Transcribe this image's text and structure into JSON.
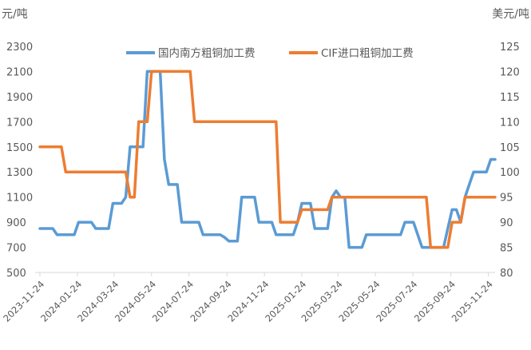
{
  "chart_data": {
    "type": "line",
    "left_axis_label": "元/吨",
    "right_axis_label": "美元/吨",
    "left_ylim": [
      500,
      2300
    ],
    "left_ticks": [
      500,
      700,
      900,
      1100,
      1300,
      1500,
      1700,
      1900,
      2100,
      2300
    ],
    "right_ylim": [
      80,
      125
    ],
    "right_ticks": [
      80,
      85,
      90,
      95,
      100,
      105,
      110,
      115,
      120,
      125
    ],
    "x_tick_labels": [
      "2023-11-24",
      "2024-01-24",
      "2024-03-24",
      "2024-05-24",
      "2024-07-24",
      "2024-09-24",
      "2024-11-24",
      "2025-01-24",
      "2025-03-24",
      "2025-05-24",
      "2025-07-24",
      "2025-09-24",
      "2025-11-24"
    ],
    "legend_position": "top",
    "grid": false,
    "series": [
      {
        "name": "国内南方粗铜加工费",
        "axis": "left",
        "color": "#5B9BD5",
        "points": [
          [
            "2023-11-24",
            850
          ],
          [
            "2023-12-01",
            850
          ],
          [
            "2023-12-08",
            850
          ],
          [
            "2023-12-15",
            850
          ],
          [
            "2023-12-22",
            800
          ],
          [
            "2023-12-29",
            800
          ],
          [
            "2024-01-05",
            800
          ],
          [
            "2024-01-12",
            800
          ],
          [
            "2024-01-19",
            800
          ],
          [
            "2024-01-26",
            900
          ],
          [
            "2024-02-02",
            900
          ],
          [
            "2024-02-09",
            900
          ],
          [
            "2024-02-16",
            900
          ],
          [
            "2024-02-23",
            850
          ],
          [
            "2024-03-01",
            850
          ],
          [
            "2024-03-08",
            850
          ],
          [
            "2024-03-15",
            850
          ],
          [
            "2024-03-22",
            1050
          ],
          [
            "2024-03-29",
            1050
          ],
          [
            "2024-04-05",
            1050
          ],
          [
            "2024-04-12",
            1100
          ],
          [
            "2024-04-19",
            1500
          ],
          [
            "2024-04-26",
            1500
          ],
          [
            "2024-05-03",
            1500
          ],
          [
            "2024-05-10",
            1500
          ],
          [
            "2024-05-17",
            2100
          ],
          [
            "2024-05-24",
            2100
          ],
          [
            "2024-05-31",
            2100
          ],
          [
            "2024-06-07",
            2100
          ],
          [
            "2024-06-14",
            1400
          ],
          [
            "2024-06-21",
            1200
          ],
          [
            "2024-06-28",
            1200
          ],
          [
            "2024-07-05",
            1200
          ],
          [
            "2024-07-12",
            900
          ],
          [
            "2024-07-19",
            900
          ],
          [
            "2024-07-26",
            900
          ],
          [
            "2024-08-02",
            900
          ],
          [
            "2024-08-09",
            900
          ],
          [
            "2024-08-16",
            800
          ],
          [
            "2024-08-23",
            800
          ],
          [
            "2024-08-30",
            800
          ],
          [
            "2024-09-06",
            800
          ],
          [
            "2024-09-13",
            800
          ],
          [
            "2024-09-20",
            780
          ],
          [
            "2024-09-27",
            750
          ],
          [
            "2024-10-04",
            750
          ],
          [
            "2024-10-11",
            750
          ],
          [
            "2024-10-18",
            1100
          ],
          [
            "2024-10-25",
            1100
          ],
          [
            "2024-11-01",
            1100
          ],
          [
            "2024-11-08",
            1100
          ],
          [
            "2024-11-15",
            900
          ],
          [
            "2024-11-22",
            900
          ],
          [
            "2024-11-29",
            900
          ],
          [
            "2024-12-06",
            900
          ],
          [
            "2024-12-13",
            800
          ],
          [
            "2024-12-20",
            800
          ],
          [
            "2024-12-27",
            800
          ],
          [
            "2025-01-03",
            800
          ],
          [
            "2025-01-10",
            800
          ],
          [
            "2025-01-17",
            900
          ],
          [
            "2025-01-24",
            1050
          ],
          [
            "2025-01-31",
            1050
          ],
          [
            "2025-02-07",
            1050
          ],
          [
            "2025-02-14",
            850
          ],
          [
            "2025-02-21",
            850
          ],
          [
            "2025-02-28",
            850
          ],
          [
            "2025-03-07",
            850
          ],
          [
            "2025-03-14",
            1100
          ],
          [
            "2025-03-21",
            1150
          ],
          [
            "2025-03-28",
            1100
          ],
          [
            "2025-04-04",
            1100
          ],
          [
            "2025-04-11",
            700
          ],
          [
            "2025-04-18",
            700
          ],
          [
            "2025-04-25",
            700
          ],
          [
            "2025-05-02",
            700
          ],
          [
            "2025-05-09",
            800
          ],
          [
            "2025-05-16",
            800
          ],
          [
            "2025-05-23",
            800
          ],
          [
            "2025-05-30",
            800
          ],
          [
            "2025-06-06",
            800
          ],
          [
            "2025-06-13",
            800
          ],
          [
            "2025-06-20",
            800
          ],
          [
            "2025-06-27",
            800
          ],
          [
            "2025-07-04",
            800
          ],
          [
            "2025-07-11",
            900
          ],
          [
            "2025-07-18",
            900
          ],
          [
            "2025-07-25",
            900
          ],
          [
            "2025-08-01",
            800
          ],
          [
            "2025-08-08",
            700
          ],
          [
            "2025-08-15",
            700
          ],
          [
            "2025-08-22",
            700
          ],
          [
            "2025-08-29",
            700
          ],
          [
            "2025-09-05",
            700
          ],
          [
            "2025-09-12",
            700
          ],
          [
            "2025-09-19",
            850
          ],
          [
            "2025-09-26",
            1000
          ],
          [
            "2025-10-03",
            1000
          ],
          [
            "2025-10-10",
            900
          ],
          [
            "2025-10-17",
            1100
          ],
          [
            "2025-10-24",
            1200
          ],
          [
            "2025-10-31",
            1300
          ],
          [
            "2025-11-07",
            1300
          ],
          [
            "2025-11-14",
            1300
          ],
          [
            "2025-11-21",
            1300
          ],
          [
            "2025-11-28",
            1400
          ],
          [
            "2025-12-05",
            1400
          ]
        ]
      },
      {
        "name": "CIF进口粗铜加工费",
        "axis": "right",
        "color": "#ED7D31",
        "points": [
          [
            "2023-11-24",
            105
          ],
          [
            "2023-12-01",
            105
          ],
          [
            "2023-12-08",
            105
          ],
          [
            "2023-12-15",
            105
          ],
          [
            "2023-12-22",
            105
          ],
          [
            "2023-12-29",
            105
          ],
          [
            "2024-01-05",
            100
          ],
          [
            "2024-01-12",
            100
          ],
          [
            "2024-01-19",
            100
          ],
          [
            "2024-01-26",
            100
          ],
          [
            "2024-02-02",
            100
          ],
          [
            "2024-02-09",
            100
          ],
          [
            "2024-02-16",
            100
          ],
          [
            "2024-02-23",
            100
          ],
          [
            "2024-03-01",
            100
          ],
          [
            "2024-03-08",
            100
          ],
          [
            "2024-03-15",
            100
          ],
          [
            "2024-03-22",
            100
          ],
          [
            "2024-03-29",
            100
          ],
          [
            "2024-04-05",
            100
          ],
          [
            "2024-04-12",
            100
          ],
          [
            "2024-04-19",
            95
          ],
          [
            "2024-04-26",
            95
          ],
          [
            "2024-05-03",
            110
          ],
          [
            "2024-05-10",
            110
          ],
          [
            "2024-05-17",
            110
          ],
          [
            "2024-05-24",
            120
          ],
          [
            "2024-05-31",
            120
          ],
          [
            "2024-06-07",
            120
          ],
          [
            "2024-06-14",
            120
          ],
          [
            "2024-06-21",
            120
          ],
          [
            "2024-06-28",
            120
          ],
          [
            "2024-07-05",
            120
          ],
          [
            "2024-07-12",
            120
          ],
          [
            "2024-07-19",
            120
          ],
          [
            "2024-07-26",
            120
          ],
          [
            "2024-08-02",
            110
          ],
          [
            "2024-08-09",
            110
          ],
          [
            "2024-08-16",
            110
          ],
          [
            "2024-08-23",
            110
          ],
          [
            "2024-08-30",
            110
          ],
          [
            "2024-09-06",
            110
          ],
          [
            "2024-09-13",
            110
          ],
          [
            "2024-09-20",
            110
          ],
          [
            "2024-09-27",
            110
          ],
          [
            "2024-10-04",
            110
          ],
          [
            "2024-10-11",
            110
          ],
          [
            "2024-10-18",
            110
          ],
          [
            "2024-10-25",
            110
          ],
          [
            "2024-11-01",
            110
          ],
          [
            "2024-11-08",
            110
          ],
          [
            "2024-11-15",
            110
          ],
          [
            "2024-11-22",
            110
          ],
          [
            "2024-11-29",
            110
          ],
          [
            "2024-12-06",
            110
          ],
          [
            "2024-12-13",
            110
          ],
          [
            "2024-12-20",
            90
          ],
          [
            "2024-12-27",
            90
          ],
          [
            "2025-01-03",
            90
          ],
          [
            "2025-01-10",
            90
          ],
          [
            "2025-01-17",
            90
          ],
          [
            "2025-01-24",
            92.5
          ],
          [
            "2025-01-31",
            92.5
          ],
          [
            "2025-02-07",
            92.5
          ],
          [
            "2025-02-14",
            92.5
          ],
          [
            "2025-02-21",
            92.5
          ],
          [
            "2025-02-28",
            92.5
          ],
          [
            "2025-03-07",
            92.5
          ],
          [
            "2025-03-14",
            95
          ],
          [
            "2025-03-21",
            95
          ],
          [
            "2025-03-28",
            95
          ],
          [
            "2025-04-04",
            95
          ],
          [
            "2025-04-11",
            95
          ],
          [
            "2025-04-18",
            95
          ],
          [
            "2025-04-25",
            95
          ],
          [
            "2025-05-02",
            95
          ],
          [
            "2025-05-09",
            95
          ],
          [
            "2025-05-16",
            95
          ],
          [
            "2025-05-23",
            95
          ],
          [
            "2025-05-30",
            95
          ],
          [
            "2025-06-06",
            95
          ],
          [
            "2025-06-13",
            95
          ],
          [
            "2025-06-20",
            95
          ],
          [
            "2025-06-27",
            95
          ],
          [
            "2025-07-04",
            95
          ],
          [
            "2025-07-11",
            95
          ],
          [
            "2025-07-18",
            95
          ],
          [
            "2025-07-25",
            95
          ],
          [
            "2025-08-01",
            95
          ],
          [
            "2025-08-08",
            95
          ],
          [
            "2025-08-15",
            95
          ],
          [
            "2025-08-22",
            85
          ],
          [
            "2025-08-29",
            85
          ],
          [
            "2025-09-05",
            85
          ],
          [
            "2025-09-12",
            85
          ],
          [
            "2025-09-19",
            85
          ],
          [
            "2025-09-26",
            90
          ],
          [
            "2025-10-03",
            90
          ],
          [
            "2025-10-10",
            90
          ],
          [
            "2025-10-17",
            95
          ],
          [
            "2025-10-24",
            95
          ],
          [
            "2025-10-31",
            95
          ],
          [
            "2025-11-07",
            95
          ],
          [
            "2025-11-14",
            95
          ],
          [
            "2025-11-21",
            95
          ],
          [
            "2025-11-28",
            95
          ],
          [
            "2025-12-05",
            95
          ]
        ]
      }
    ]
  }
}
